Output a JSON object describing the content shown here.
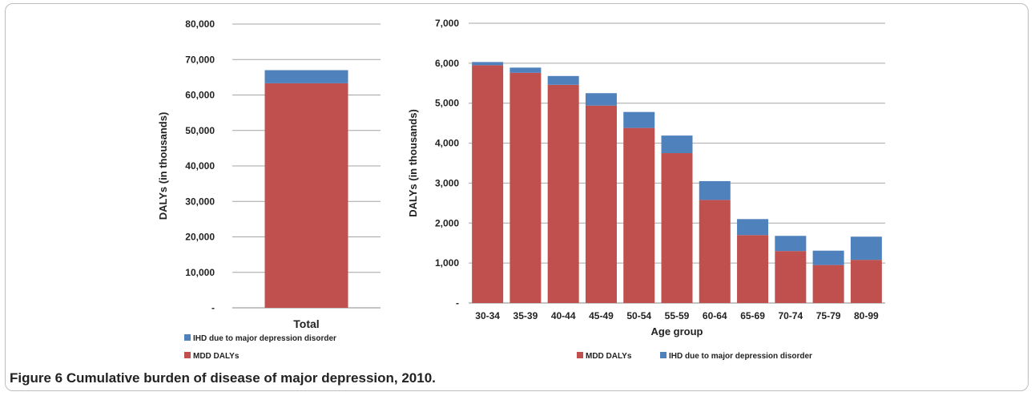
{
  "figure": {
    "label": "Figure 6",
    "caption": "Cumulative burden of disease of major depression, 2010."
  },
  "colors": {
    "mdd": "#c0504d",
    "ihd": "#4f81bd",
    "grid": "#a6a6a6"
  },
  "chart_data": [
    {
      "type": "bar",
      "stacked": true,
      "categories": [
        "Total"
      ],
      "series": [
        {
          "name": "MDD DALYs",
          "values": [
            63300
          ]
        },
        {
          "name": "IHD due to major depression disorder",
          "values": [
            3700
          ]
        }
      ],
      "xlabel": "",
      "ylabel": "DALYs (in thousands)",
      "ylim": [
        0,
        80000
      ],
      "yticks": [
        "-",
        "10,000",
        "20,000",
        "30,000",
        "40,000",
        "50,000",
        "60,000",
        "70,000",
        "80,000"
      ],
      "grid": true,
      "legend_position": "bottom",
      "legend_order": [
        "IHD due to major depression disorder",
        "MDD DALYs"
      ]
    },
    {
      "type": "bar",
      "stacked": true,
      "categories": [
        "30-34",
        "35-39",
        "40-44",
        "45-49",
        "50-54",
        "55-59",
        "60-64",
        "65-69",
        "70-74",
        "75-79",
        "80-99"
      ],
      "series": [
        {
          "name": "MDD DALYs",
          "values": [
            5950,
            5760,
            5460,
            4940,
            4380,
            3750,
            2580,
            1700,
            1300,
            950,
            1080
          ]
        },
        {
          "name": "IHD due to major depression disorder",
          "values": [
            80,
            130,
            220,
            310,
            400,
            440,
            470,
            400,
            380,
            360,
            580
          ]
        }
      ],
      "xlabel": "Age group",
      "ylabel": "DALYs (in thousands)",
      "ylim": [
        0,
        7000
      ],
      "yticks": [
        "-",
        "1,000",
        "2,000",
        "3,000",
        "4,000",
        "5,000",
        "6,000",
        "7,000"
      ],
      "grid": true,
      "legend_position": "bottom",
      "legend_order": [
        "MDD DALYs",
        "IHD due to major depression disorder"
      ]
    }
  ]
}
